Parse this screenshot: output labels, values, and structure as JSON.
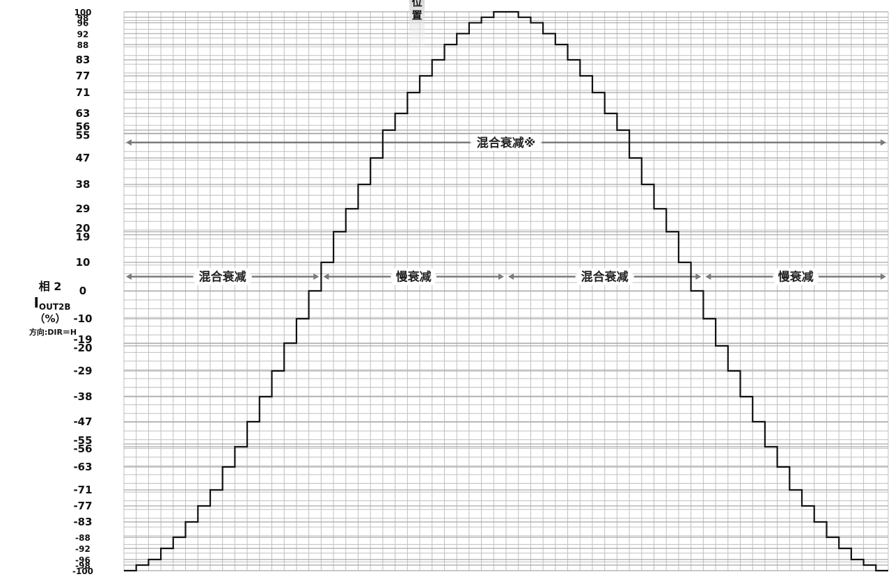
{
  "chart_data": {
    "type": "line",
    "line_style": "step",
    "ylabel": {
      "line1": "相 2",
      "main": "I",
      "subscript": "OUT2B",
      "unit": "（%）",
      "direction": "方向:DIR＝H"
    },
    "top_annotation": [
      "位",
      "置"
    ],
    "ylim": [
      -100,
      100
    ],
    "y_ticks": [
      100,
      98,
      96,
      92,
      88,
      83,
      77,
      71,
      63,
      56,
      55,
      47,
      38,
      29,
      20,
      19,
      10,
      0,
      -10,
      -19,
      -20,
      -29,
      -38,
      -47,
      -55,
      -56,
      -63,
      -71,
      -77,
      -83,
      -88,
      -92,
      -96,
      -98,
      -100
    ],
    "y_tick_labels": [
      "100",
      "98",
      "96",
      "92",
      "88",
      "83",
      "77",
      "71",
      "63",
      "56",
      "55",
      "47",
      "38",
      "29",
      "20",
      "19",
      "10",
      "0",
      "-10",
      "-19",
      "-20",
      "-29",
      "-38",
      "-47",
      "-55",
      "-56",
      "-63",
      "-71",
      "-77",
      "-83",
      "-88",
      "-92",
      "-96",
      "-98",
      "-100"
    ],
    "grid": true,
    "step_values": [
      -100,
      -98,
      -96,
      -92,
      -88,
      -83,
      -77,
      -71,
      -63,
      -56,
      -47,
      -38,
      -29,
      -19,
      -10,
      0,
      10,
      20,
      29,
      38,
      47,
      56,
      63,
      71,
      77,
      83,
      88,
      92,
      96,
      98,
      100,
      100,
      98,
      96,
      92,
      88,
      83,
      77,
      71,
      63,
      56,
      47,
      38,
      29,
      20,
      10,
      0,
      -10,
      -20,
      -29,
      -38,
      -47,
      -56,
      -63,
      -71,
      -77,
      -83,
      -88,
      -92,
      -96,
      -98,
      -100
    ],
    "annotations": [
      {
        "text": "混合衰减※",
        "y_level": 52,
        "from_step": 0,
        "to_step": 62
      },
      {
        "text": "混合衰减",
        "y_level": 5,
        "from_step": 0,
        "to_step": 16
      },
      {
        "text": "慢衰减",
        "y_level": 5,
        "from_step": 16,
        "to_step": 31
      },
      {
        "text": "混合衰减",
        "y_level": 5,
        "from_step": 31,
        "to_step": 47
      },
      {
        "text": "慢衰减",
        "y_level": 5,
        "from_step": 47,
        "to_step": 62
      }
    ]
  },
  "colors": {
    "line": "#111111",
    "grid": "#bfbfbf",
    "arrow": "#7a7a7a",
    "annotation_fade": "#c8c8c8"
  }
}
